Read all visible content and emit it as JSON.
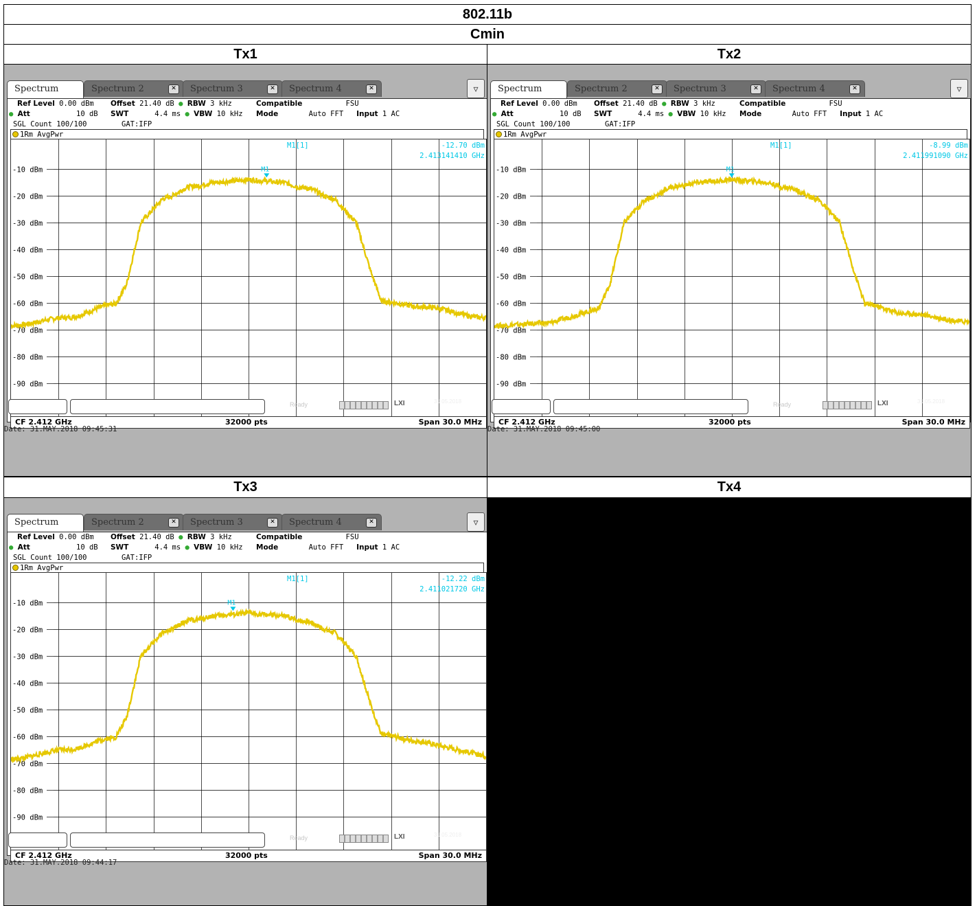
{
  "header": {
    "standard": "802.11b",
    "channel": "Cmin"
  },
  "cells": [
    {
      "label": "Tx1"
    },
    {
      "label": "Tx2"
    },
    {
      "label": "Tx3"
    },
    {
      "label": "Tx4"
    }
  ],
  "colors": {
    "trace": "#e6c800",
    "marker": "#00c8e6",
    "grid": "#000000",
    "frame": "#b3b3b3"
  },
  "analyzer": {
    "tabs": [
      "Spectrum",
      "Spectrum 2",
      "Spectrum 3",
      "Spectrum 4"
    ],
    "tab_close_icon": "close-icon",
    "settings_icon": "menu-icon",
    "ref_level_label": "Ref Level",
    "ref_level": "0.00 dBm",
    "att_label": "Att",
    "att": "10 dB",
    "offset_label": "Offset",
    "offset": "21.40 dB",
    "swt_label": "SWT",
    "swt": "4.4 ms",
    "rbw_label": "RBW",
    "rbw": "3 kHz",
    "vbw_label": "VBW",
    "vbw": "10 kHz",
    "compat_label": "Compatible",
    "compat": "FSU",
    "mode_label": "Mode",
    "mode": "Auto FFT",
    "input_label": "Input",
    "input": "1 AC",
    "sgl": "SGL Count 100/100",
    "gat": "GAT:IFP",
    "trace_label": "1Rm AvgPwr",
    "cf": "CF 2.412 GHz",
    "pts": "32000 pts",
    "span": "Span 30.0 MHz",
    "ready": "Ready",
    "status_date": "31.05.2018"
  },
  "chart_data": [
    {
      "type": "line",
      "title": "Tx1",
      "x_unit": "MHz",
      "x_range": [
        2397.0,
        2427.0
      ],
      "ylim": [
        -100,
        0
      ],
      "y_unit": "dBm",
      "y_ticks": [
        "-10 dBm",
        "-20 dBm",
        "-30 dBm",
        "-40 dBm",
        "-50 dBm",
        "-60 dBm",
        "-70 dBm",
        "-80 dBm",
        "-90 dBm"
      ],
      "marker": {
        "label": "M1",
        "name": "M1[1]",
        "level": "-12.70 dBm",
        "freq": "2.413141410 GHz",
        "x": 2413.14,
        "y": -12.7
      },
      "series": [
        {
          "x": [
            2397.0,
            2400.5,
            2403.6,
            2404.3,
            2405.2,
            2406.6,
            2408.5,
            2410.0,
            2411.0,
            2412.0,
            2413.0,
            2414.0,
            2415.5,
            2417.4,
            2418.8,
            2419.7,
            2420.4,
            2423.0,
            2427.0
          ],
          "y": [
            -68.5,
            -65.5,
            -60.5,
            -53,
            -30,
            -21,
            -16.5,
            -15,
            -14.5,
            -14,
            -14.5,
            -15,
            -17,
            -21,
            -30,
            -48,
            -59.5,
            -61.5,
            -65.5
          ]
        }
      ],
      "date": "Date: 31.MAY.2018  09:45:31"
    },
    {
      "type": "line",
      "title": "Tx2",
      "x_unit": "MHz",
      "x_range": [
        2397.0,
        2427.0
      ],
      "ylim": [
        -100,
        0
      ],
      "y_unit": "dBm",
      "y_ticks": [
        "-10 dBm",
        "-20 dBm",
        "-30 dBm",
        "-40 dBm",
        "-50 dBm",
        "-60 dBm",
        "-70 dBm",
        "-80 dBm",
        "-90 dBm"
      ],
      "marker": {
        "label": "M1",
        "name": "M1[1]",
        "level": "-8.99 dBm",
        "freq": "2.411991090 GHz",
        "x": 2411.99,
        "y": -8.99
      },
      "series": [
        {
          "x": [
            2397.0,
            2400.5,
            2403.6,
            2404.3,
            2405.2,
            2406.6,
            2408.5,
            2410.0,
            2411.0,
            2412.0,
            2413.0,
            2414.0,
            2415.5,
            2417.4,
            2418.8,
            2419.7,
            2420.4,
            2423.0,
            2427.0
          ],
          "y": [
            -68.5,
            -67.5,
            -62,
            -53,
            -30,
            -21,
            -16.5,
            -15,
            -14.5,
            -14,
            -14.5,
            -15,
            -17,
            -21,
            -30,
            -48,
            -60.5,
            -64,
            -67
          ]
        }
      ],
      "date": "Date: 31.MAY.2018  09:45:00"
    },
    {
      "type": "line",
      "title": "Tx3",
      "x_unit": "MHz",
      "x_range": [
        2397.0,
        2427.0
      ],
      "ylim": [
        -100,
        0
      ],
      "y_unit": "dBm",
      "y_ticks": [
        "-10 dBm",
        "-20 dBm",
        "-30 dBm",
        "-40 dBm",
        "-50 dBm",
        "-60 dBm",
        "-70 dBm",
        "-80 dBm",
        "-90 dBm"
      ],
      "marker": {
        "label": "M1",
        "name": "M1[1]",
        "level": "-12.22 dBm",
        "freq": "2.411021720 GHz",
        "x": 2411.02,
        "y": -12.22
      },
      "series": [
        {
          "x": [
            2397.0,
            2400.5,
            2403.6,
            2404.3,
            2405.2,
            2406.6,
            2408.5,
            2410.0,
            2411.0,
            2412.0,
            2413.0,
            2414.0,
            2415.5,
            2417.4,
            2418.8,
            2419.7,
            2420.4,
            2423.0,
            2427.0
          ],
          "y": [
            -68.5,
            -65,
            -60.5,
            -53,
            -30,
            -21,
            -16.5,
            -15,
            -14.5,
            -14,
            -14.5,
            -15,
            -17,
            -21,
            -30,
            -48,
            -59.5,
            -62,
            -67.5
          ]
        }
      ],
      "date": "Date: 31.MAY.2018  09:44:17"
    }
  ]
}
